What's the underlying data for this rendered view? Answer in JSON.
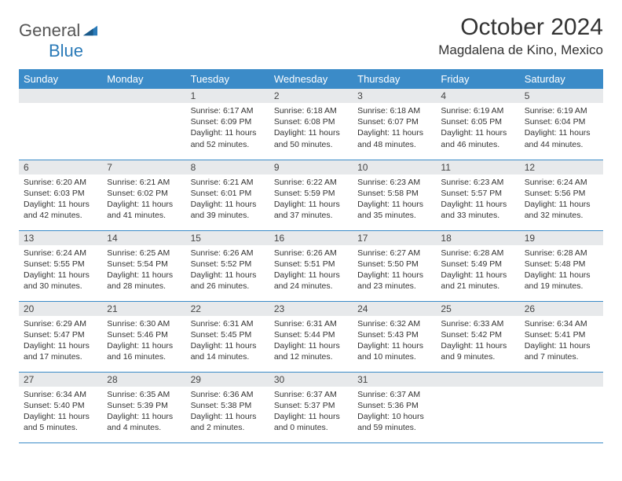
{
  "brand": {
    "general": "General",
    "blue": "Blue"
  },
  "header": {
    "title": "October 2024",
    "location": "Magdalena de Kino, Mexico"
  },
  "colors": {
    "header_bg": "#3b8bc8",
    "header_text": "#ffffff",
    "daynum_bg": "#e7e9eb",
    "cell_border": "#3b8bc8",
    "body_text": "#333333",
    "brand_gray": "#555555",
    "brand_blue": "#2a7ab8"
  },
  "weekdays": [
    "Sunday",
    "Monday",
    "Tuesday",
    "Wednesday",
    "Thursday",
    "Friday",
    "Saturday"
  ],
  "weeks": [
    [
      {
        "blank": true
      },
      {
        "blank": true
      },
      {
        "n": "1",
        "sr": "Sunrise: 6:17 AM",
        "ss": "Sunset: 6:09 PM",
        "dl": "Daylight: 11 hours and 52 minutes."
      },
      {
        "n": "2",
        "sr": "Sunrise: 6:18 AM",
        "ss": "Sunset: 6:08 PM",
        "dl": "Daylight: 11 hours and 50 minutes."
      },
      {
        "n": "3",
        "sr": "Sunrise: 6:18 AM",
        "ss": "Sunset: 6:07 PM",
        "dl": "Daylight: 11 hours and 48 minutes."
      },
      {
        "n": "4",
        "sr": "Sunrise: 6:19 AM",
        "ss": "Sunset: 6:05 PM",
        "dl": "Daylight: 11 hours and 46 minutes."
      },
      {
        "n": "5",
        "sr": "Sunrise: 6:19 AM",
        "ss": "Sunset: 6:04 PM",
        "dl": "Daylight: 11 hours and 44 minutes."
      }
    ],
    [
      {
        "n": "6",
        "sr": "Sunrise: 6:20 AM",
        "ss": "Sunset: 6:03 PM",
        "dl": "Daylight: 11 hours and 42 minutes."
      },
      {
        "n": "7",
        "sr": "Sunrise: 6:21 AM",
        "ss": "Sunset: 6:02 PM",
        "dl": "Daylight: 11 hours and 41 minutes."
      },
      {
        "n": "8",
        "sr": "Sunrise: 6:21 AM",
        "ss": "Sunset: 6:01 PM",
        "dl": "Daylight: 11 hours and 39 minutes."
      },
      {
        "n": "9",
        "sr": "Sunrise: 6:22 AM",
        "ss": "Sunset: 5:59 PM",
        "dl": "Daylight: 11 hours and 37 minutes."
      },
      {
        "n": "10",
        "sr": "Sunrise: 6:23 AM",
        "ss": "Sunset: 5:58 PM",
        "dl": "Daylight: 11 hours and 35 minutes."
      },
      {
        "n": "11",
        "sr": "Sunrise: 6:23 AM",
        "ss": "Sunset: 5:57 PM",
        "dl": "Daylight: 11 hours and 33 minutes."
      },
      {
        "n": "12",
        "sr": "Sunrise: 6:24 AM",
        "ss": "Sunset: 5:56 PM",
        "dl": "Daylight: 11 hours and 32 minutes."
      }
    ],
    [
      {
        "n": "13",
        "sr": "Sunrise: 6:24 AM",
        "ss": "Sunset: 5:55 PM",
        "dl": "Daylight: 11 hours and 30 minutes."
      },
      {
        "n": "14",
        "sr": "Sunrise: 6:25 AM",
        "ss": "Sunset: 5:54 PM",
        "dl": "Daylight: 11 hours and 28 minutes."
      },
      {
        "n": "15",
        "sr": "Sunrise: 6:26 AM",
        "ss": "Sunset: 5:52 PM",
        "dl": "Daylight: 11 hours and 26 minutes."
      },
      {
        "n": "16",
        "sr": "Sunrise: 6:26 AM",
        "ss": "Sunset: 5:51 PM",
        "dl": "Daylight: 11 hours and 24 minutes."
      },
      {
        "n": "17",
        "sr": "Sunrise: 6:27 AM",
        "ss": "Sunset: 5:50 PM",
        "dl": "Daylight: 11 hours and 23 minutes."
      },
      {
        "n": "18",
        "sr": "Sunrise: 6:28 AM",
        "ss": "Sunset: 5:49 PM",
        "dl": "Daylight: 11 hours and 21 minutes."
      },
      {
        "n": "19",
        "sr": "Sunrise: 6:28 AM",
        "ss": "Sunset: 5:48 PM",
        "dl": "Daylight: 11 hours and 19 minutes."
      }
    ],
    [
      {
        "n": "20",
        "sr": "Sunrise: 6:29 AM",
        "ss": "Sunset: 5:47 PM",
        "dl": "Daylight: 11 hours and 17 minutes."
      },
      {
        "n": "21",
        "sr": "Sunrise: 6:30 AM",
        "ss": "Sunset: 5:46 PM",
        "dl": "Daylight: 11 hours and 16 minutes."
      },
      {
        "n": "22",
        "sr": "Sunrise: 6:31 AM",
        "ss": "Sunset: 5:45 PM",
        "dl": "Daylight: 11 hours and 14 minutes."
      },
      {
        "n": "23",
        "sr": "Sunrise: 6:31 AM",
        "ss": "Sunset: 5:44 PM",
        "dl": "Daylight: 11 hours and 12 minutes."
      },
      {
        "n": "24",
        "sr": "Sunrise: 6:32 AM",
        "ss": "Sunset: 5:43 PM",
        "dl": "Daylight: 11 hours and 10 minutes."
      },
      {
        "n": "25",
        "sr": "Sunrise: 6:33 AM",
        "ss": "Sunset: 5:42 PM",
        "dl": "Daylight: 11 hours and 9 minutes."
      },
      {
        "n": "26",
        "sr": "Sunrise: 6:34 AM",
        "ss": "Sunset: 5:41 PM",
        "dl": "Daylight: 11 hours and 7 minutes."
      }
    ],
    [
      {
        "n": "27",
        "sr": "Sunrise: 6:34 AM",
        "ss": "Sunset: 5:40 PM",
        "dl": "Daylight: 11 hours and 5 minutes."
      },
      {
        "n": "28",
        "sr": "Sunrise: 6:35 AM",
        "ss": "Sunset: 5:39 PM",
        "dl": "Daylight: 11 hours and 4 minutes."
      },
      {
        "n": "29",
        "sr": "Sunrise: 6:36 AM",
        "ss": "Sunset: 5:38 PM",
        "dl": "Daylight: 11 hours and 2 minutes."
      },
      {
        "n": "30",
        "sr": "Sunrise: 6:37 AM",
        "ss": "Sunset: 5:37 PM",
        "dl": "Daylight: 11 hours and 0 minutes."
      },
      {
        "n": "31",
        "sr": "Sunrise: 6:37 AM",
        "ss": "Sunset: 5:36 PM",
        "dl": "Daylight: 10 hours and 59 minutes."
      },
      {
        "blank": true
      },
      {
        "blank": true
      }
    ]
  ]
}
